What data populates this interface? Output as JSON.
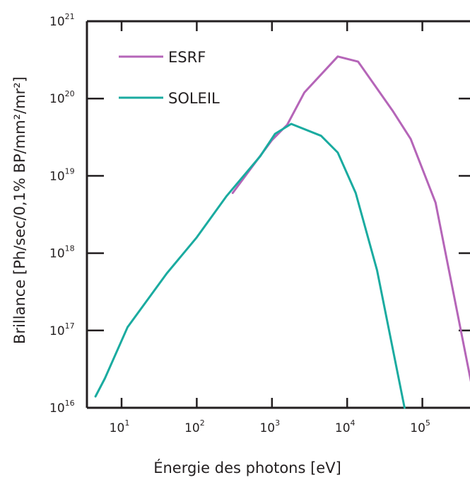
{
  "chart_data": {
    "type": "line",
    "title": "",
    "xlabel": "Énergie des photons [eV]",
    "ylabel": "Brillance [Ph/sec/0,1% BP/mm²/mr²]",
    "x_scale": "log",
    "y_scale": "log",
    "xlim": [
      3.6,
      550000
    ],
    "ylim": [
      1e+16,
      1e+21
    ],
    "grid": false,
    "legend_position": "top-left",
    "x_ticks": [
      {
        "base": "10",
        "exp": "1",
        "value": 10
      },
      {
        "base": "10",
        "exp": "2",
        "value": 100
      },
      {
        "base": "10",
        "exp": "3",
        "value": 1000
      },
      {
        "base": "10",
        "exp": "4",
        "value": 10000
      },
      {
        "base": "10",
        "exp": "5",
        "value": 100000
      }
    ],
    "y_ticks": [
      {
        "base": "10",
        "exp": "16",
        "value": 1e+16
      },
      {
        "base": "10",
        "exp": "17",
        "value": 1e+17
      },
      {
        "base": "10",
        "exp": "18",
        "value": 1e+18
      },
      {
        "base": "10",
        "exp": "19",
        "value": 1e+19
      },
      {
        "base": "10",
        "exp": "20",
        "value": 1e+20
      },
      {
        "base": "10",
        "exp": "21",
        "value": 1e+21
      }
    ],
    "series": [
      {
        "name": "ESRF",
        "color": "#b565b8",
        "x": [
          300,
          1000,
          1600,
          2700,
          7500,
          14000,
          40000,
          70000,
          150000,
          500000
        ],
        "y": [
          6e+18,
          2.9e+19,
          4.6e+19,
          1.2e+20,
          3.5e+20,
          3e+20,
          7e+19,
          3e+19,
          4.5e+18,
          1.2e+16
        ]
      },
      {
        "name": "SOLEIL",
        "color": "#1aaba0",
        "x": [
          4.5,
          6,
          12,
          40,
          100,
          250,
          700,
          1100,
          1800,
          4500,
          7500,
          13000,
          25000,
          58000
        ],
        "y": [
          1.4e+16,
          2.4e+16,
          1.1e+17,
          5.5e+17,
          1.6e+18,
          5.5e+18,
          1.8e+19,
          3.5e+19,
          4.7e+19,
          3.3e+19,
          2e+19,
          6e+18,
          6e+17,
          1e+16
        ]
      }
    ]
  }
}
